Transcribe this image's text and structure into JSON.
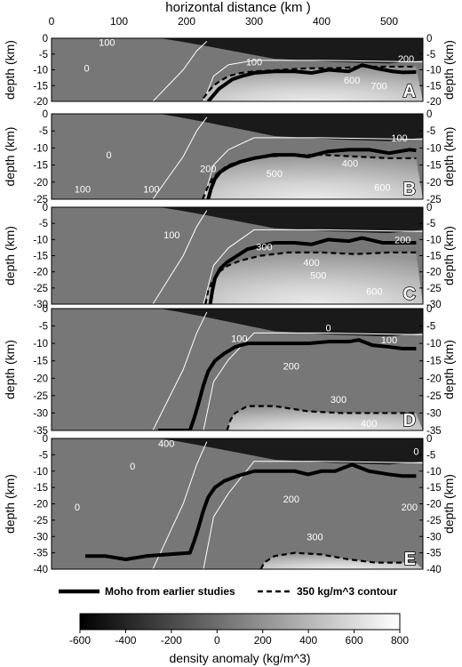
{
  "figure": {
    "top_axis_label": "horizontal distance (km )",
    "colorbar_label": "density anomaly (kg/m^3)",
    "legend": {
      "moho": "Moho from earlier studies",
      "contour350": "350 kg/m^3 contour"
    }
  },
  "chart_data": {
    "type": "heatmap",
    "xlabel": "horizontal distance (km )",
    "xlim": [
      0,
      550
    ],
    "x_ticks": [
      0,
      100,
      200,
      300,
      400,
      500
    ],
    "colorbar": {
      "label": "density anomaly (kg/m^3)",
      "range": [
        -600,
        800
      ],
      "ticks": [
        -600,
        -400,
        -200,
        0,
        200,
        400,
        600,
        800
      ],
      "colormap": [
        "#000000",
        "#ffffff"
      ]
    },
    "legend": [
      {
        "label": "Moho from earlier studies",
        "style": "thick-solid",
        "color": "#000000"
      },
      {
        "label": "350 kg/m^3 contour",
        "style": "dashed",
        "color": "#000000"
      }
    ],
    "panels": [
      {
        "letter": "A",
        "ylabel": "depth (km)",
        "ylim": [
          0,
          -20
        ],
        "yticks": [
          0,
          -5,
          -10,
          -15,
          -20
        ],
        "moho": [
          [
            232,
            -20
          ],
          [
            240,
            -18
          ],
          [
            248,
            -16
          ],
          [
            258,
            -14.5
          ],
          [
            268,
            -13
          ],
          [
            282,
            -12
          ],
          [
            300,
            -11
          ],
          [
            330,
            -10.5
          ],
          [
            360,
            -10.5
          ],
          [
            385,
            -11
          ],
          [
            410,
            -10
          ],
          [
            440,
            -10.5
          ],
          [
            460,
            -8.5
          ],
          [
            480,
            -9.5
          ],
          [
            505,
            -10.5
          ],
          [
            520,
            -10.8
          ],
          [
            540,
            -10.7
          ]
        ],
        "contour350": [
          [
            225,
            -19
          ],
          [
            232,
            -17
          ],
          [
            240,
            -15
          ],
          [
            250,
            -13.5
          ],
          [
            262,
            -12
          ],
          [
            280,
            -11
          ],
          [
            300,
            -10.5
          ],
          [
            340,
            -10
          ],
          [
            380,
            -9.5
          ],
          [
            420,
            -9.5
          ],
          [
            460,
            -9
          ],
          [
            500,
            -9
          ],
          [
            540,
            -9
          ]
        ],
        "contour_labels": [
          {
            "value": "100",
            "x": 82,
            "y": -1.3
          },
          {
            "value": "0",
            "x": 52,
            "y": -9.5
          },
          {
            "value": "100",
            "x": 300,
            "y": -7.5
          },
          {
            "value": "600",
            "x": 445,
            "y": -13.3
          },
          {
            "value": "700",
            "x": 485,
            "y": -15
          },
          {
            "value": "200",
            "x": 525,
            "y": -6.5
          }
        ]
      },
      {
        "letter": "B",
        "ylabel": "depth (km)",
        "ylim": [
          0,
          -25
        ],
        "yticks": [
          0,
          -5,
          -10,
          -15,
          -20,
          -25
        ],
        "moho": [
          [
            232,
            -25
          ],
          [
            236,
            -22
          ],
          [
            242,
            -19
          ],
          [
            250,
            -17
          ],
          [
            262,
            -15.5
          ],
          [
            280,
            -14
          ],
          [
            300,
            -13
          ],
          [
            330,
            -12
          ],
          [
            360,
            -12
          ],
          [
            380,
            -12.5
          ],
          [
            410,
            -11
          ],
          [
            440,
            -10.5
          ],
          [
            470,
            -10.5
          ],
          [
            500,
            -11.5
          ],
          [
            530,
            -10.5
          ],
          [
            540,
            -10.7
          ]
        ],
        "contour350": [
          [
            224,
            -25
          ],
          [
            230,
            -22
          ],
          [
            238,
            -19
          ],
          [
            248,
            -17
          ],
          [
            262,
            -15
          ],
          [
            285,
            -13.5
          ],
          [
            320,
            -12.5
          ],
          [
            360,
            -12
          ],
          [
            400,
            -12
          ],
          [
            450,
            -12.5
          ],
          [
            500,
            -13
          ],
          [
            540,
            -13
          ]
        ],
        "contour_labels": [
          {
            "value": "0",
            "x": 85,
            "y": -12
          },
          {
            "value": "100",
            "x": 46,
            "y": -22
          },
          {
            "value": "100",
            "x": 148,
            "y": -22
          },
          {
            "value": "200",
            "x": 232,
            "y": -16
          },
          {
            "value": "400",
            "x": 442,
            "y": -14.5
          },
          {
            "value": "500",
            "x": 330,
            "y": -17.5
          },
          {
            "value": "600",
            "x": 490,
            "y": -21.5
          },
          {
            "value": "100",
            "x": 515,
            "y": -7
          }
        ]
      },
      {
        "letter": "C",
        "ylabel": "depth (km)",
        "ylim": [
          0,
          -30
        ],
        "yticks": [
          0,
          -5,
          -10,
          -15,
          -20,
          -25,
          -30
        ],
        "moho": [
          [
            235,
            -30
          ],
          [
            238,
            -26
          ],
          [
            242,
            -22
          ],
          [
            250,
            -19
          ],
          [
            260,
            -17
          ],
          [
            275,
            -15
          ],
          [
            290,
            -13
          ],
          [
            310,
            -12
          ],
          [
            330,
            -11
          ],
          [
            360,
            -11
          ],
          [
            385,
            -11.5
          ],
          [
            410,
            -10
          ],
          [
            440,
            -10.5
          ],
          [
            460,
            -9.5
          ],
          [
            490,
            -11
          ],
          [
            520,
            -11
          ],
          [
            540,
            -11
          ]
        ],
        "contour350": [
          [
            228,
            -30
          ],
          [
            232,
            -26
          ],
          [
            238,
            -23
          ],
          [
            248,
            -20
          ],
          [
            262,
            -18
          ],
          [
            280,
            -16.5
          ],
          [
            310,
            -15
          ],
          [
            350,
            -14
          ],
          [
            400,
            -14
          ],
          [
            450,
            -14.5
          ],
          [
            500,
            -14
          ],
          [
            540,
            -14
          ]
        ],
        "contour_labels": [
          {
            "value": "100",
            "x": 178,
            "y": -8.5
          },
          {
            "value": "200",
            "x": 520,
            "y": -10
          },
          {
            "value": "300",
            "x": 315,
            "y": -12.3
          },
          {
            "value": "400",
            "x": 385,
            "y": -17
          },
          {
            "value": "500",
            "x": 395,
            "y": -21
          },
          {
            "value": "600",
            "x": 478,
            "y": -26
          }
        ]
      },
      {
        "letter": "D",
        "ylabel": "depth (km)",
        "ylim": [
          0,
          -35
        ],
        "yticks": [
          0,
          -5,
          -10,
          -15,
          -20,
          -25,
          -30,
          -35
        ],
        "moho": [
          [
            158,
            -35
          ],
          [
            180,
            -35
          ],
          [
            205,
            -35
          ],
          [
            212,
            -31
          ],
          [
            218,
            -27
          ],
          [
            225,
            -22
          ],
          [
            232,
            -18
          ],
          [
            242,
            -15
          ],
          [
            255,
            -13
          ],
          [
            272,
            -11
          ],
          [
            290,
            -10
          ],
          [
            320,
            -10
          ],
          [
            350,
            -10
          ],
          [
            380,
            -10
          ],
          [
            410,
            -9.5
          ],
          [
            440,
            -9.5
          ],
          [
            455,
            -9
          ],
          [
            475,
            -10.5
          ],
          [
            500,
            -11
          ],
          [
            520,
            -11.5
          ],
          [
            540,
            -11.5
          ]
        ],
        "contour350": [
          [
            260,
            -35
          ],
          [
            265,
            -32
          ],
          [
            272,
            -30
          ],
          [
            290,
            -28
          ],
          [
            330,
            -28
          ],
          [
            380,
            -29.5
          ],
          [
            430,
            -30
          ],
          [
            480,
            -30
          ],
          [
            540,
            -30
          ]
        ],
        "contour_labels": [
          {
            "value": "100",
            "x": 278,
            "y": -8.5
          },
          {
            "value": "200",
            "x": 355,
            "y": -16.5
          },
          {
            "value": "300",
            "x": 425,
            "y": -26
          },
          {
            "value": "400",
            "x": 470,
            "y": -33
          },
          {
            "value": "100",
            "x": 500,
            "y": -9
          },
          {
            "value": "0",
            "x": 410,
            "y": -5.5
          }
        ]
      },
      {
        "letter": "E",
        "ylabel": "depth (km)",
        "ylim": [
          0,
          -40
        ],
        "yticks": [
          0,
          -5,
          -10,
          -15,
          -20,
          -25,
          -30,
          -35,
          -40
        ],
        "moho": [
          [
            50,
            -36
          ],
          [
            80,
            -36
          ],
          [
            110,
            -37
          ],
          [
            140,
            -36
          ],
          [
            170,
            -35.5
          ],
          [
            205,
            -35
          ],
          [
            212,
            -31
          ],
          [
            218,
            -27
          ],
          [
            225,
            -22
          ],
          [
            232,
            -18
          ],
          [
            242,
            -15
          ],
          [
            256,
            -13
          ],
          [
            275,
            -11.5
          ],
          [
            300,
            -10
          ],
          [
            330,
            -10
          ],
          [
            360,
            -10
          ],
          [
            380,
            -11
          ],
          [
            400,
            -10
          ],
          [
            420,
            -10
          ],
          [
            445,
            -8
          ],
          [
            470,
            -10
          ],
          [
            500,
            -11
          ],
          [
            520,
            -11.5
          ],
          [
            540,
            -11.5
          ]
        ],
        "contour350": [
          [
            310,
            -40
          ],
          [
            315,
            -38
          ],
          [
            330,
            -36
          ],
          [
            360,
            -35
          ],
          [
            400,
            -35.5
          ],
          [
            440,
            -37
          ],
          [
            480,
            -38
          ],
          [
            540,
            -38
          ]
        ],
        "contour_labels": [
          {
            "value": "0",
            "x": 120,
            "y": -8.5
          },
          {
            "value": "0",
            "x": 38,
            "y": -21
          },
          {
            "value": "200",
            "x": 355,
            "y": -18.5
          },
          {
            "value": "200",
            "x": 530,
            "y": -21
          },
          {
            "value": "300",
            "x": 390,
            "y": -30
          },
          {
            "value": "400",
            "x": 170,
            "y": -1.5
          },
          {
            "value": "0",
            "x": 540,
            "y": -4
          }
        ]
      }
    ]
  }
}
